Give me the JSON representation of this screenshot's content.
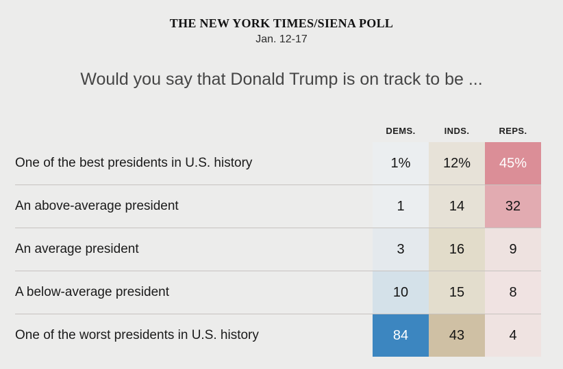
{
  "header": {
    "title": "THE NEW YORK TIMES/SIENA POLL",
    "date": "Jan. 12-17"
  },
  "question": "Would you say that Donald Trump is on track to be ...",
  "table": {
    "columns": [
      "DEMS.",
      "INDS.",
      "REPS."
    ],
    "rows": [
      {
        "label": "One of the best presidents in U.S. history",
        "cells": [
          {
            "text": "1%",
            "bg": "#ebeef0",
            "color": "#141414"
          },
          {
            "text": "12%",
            "bg": "#e7e2d8",
            "color": "#141414"
          },
          {
            "text": "45%",
            "bg": "#db8e97",
            "color": "#ffffff"
          }
        ]
      },
      {
        "label": "An above-average president",
        "cells": [
          {
            "text": "1",
            "bg": "#ebeef0",
            "color": "#141414"
          },
          {
            "text": "14",
            "bg": "#e6e1d6",
            "color": "#141414"
          },
          {
            "text": "32",
            "bg": "#e2abb1",
            "color": "#141414"
          }
        ]
      },
      {
        "label": "An average president",
        "cells": [
          {
            "text": "3",
            "bg": "#e4e9ed",
            "color": "#141414"
          },
          {
            "text": "16",
            "bg": "#e2dcca",
            "color": "#141414"
          },
          {
            "text": "9",
            "bg": "#eee2e0",
            "color": "#141414"
          }
        ]
      },
      {
        "label": "A below-average president",
        "cells": [
          {
            "text": "10",
            "bg": "#d4e1e9",
            "color": "#141414"
          },
          {
            "text": "15",
            "bg": "#e3ddcd",
            "color": "#141414"
          },
          {
            "text": "8",
            "bg": "#f0e3e2",
            "color": "#141414"
          }
        ]
      },
      {
        "label": "One of the worst presidents in U.S. history",
        "cells": [
          {
            "text": "84",
            "bg": "#3c86c0",
            "color": "#ffffff"
          },
          {
            "text": "43",
            "bg": "#cfc0a4",
            "color": "#141414"
          },
          {
            "text": "4",
            "bg": "#efe3e1",
            "color": "#141414"
          }
        ]
      }
    ]
  },
  "colors": {
    "background": "#ececeb",
    "dem_accent": "#3c86c0",
    "ind_accent": "#cfc0a4",
    "rep_accent": "#db8e97",
    "row_divider": "#c6c2bf"
  },
  "chart_data": {
    "type": "heatmap",
    "title": "Would you say that Donald Trump is on track to be ...",
    "source_label": "THE NEW YORK TIMES/SIENA POLL",
    "date_range": "Jan. 12-17",
    "categories": [
      "One of the best presidents in U.S. history",
      "An above-average president",
      "An average president",
      "A below-average president",
      "One of the worst presidents in U.S. history"
    ],
    "series": [
      {
        "name": "DEMS.",
        "values": [
          1,
          1,
          3,
          10,
          84
        ]
      },
      {
        "name": "INDS.",
        "values": [
          12,
          14,
          16,
          15,
          43
        ]
      },
      {
        "name": "REPS.",
        "values": [
          45,
          32,
          9,
          8,
          4
        ]
      }
    ],
    "value_unit": "percent",
    "legend_position": "none",
    "grid": "row-dividers"
  }
}
